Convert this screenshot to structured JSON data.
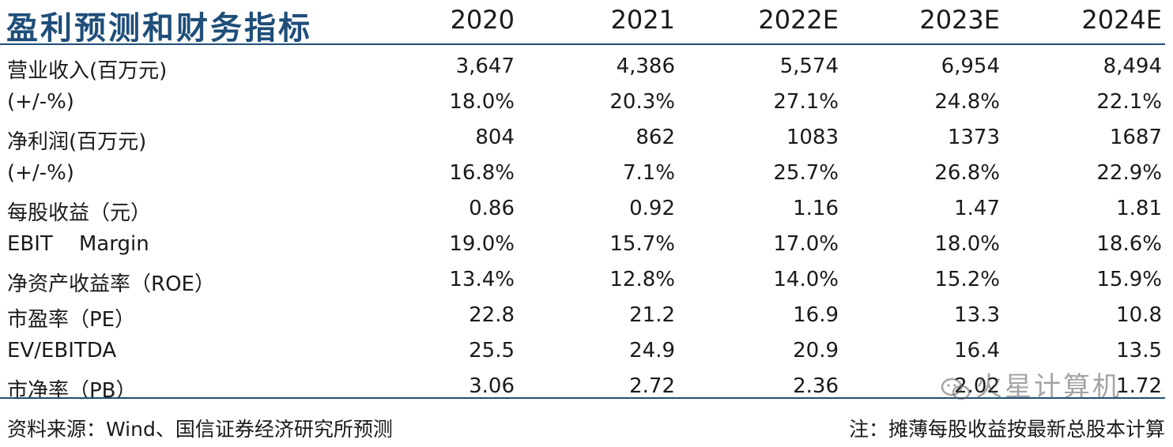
{
  "title": "盈利预测和财务指标",
  "years": [
    "2020",
    "2021",
    "2022E",
    "2023E",
    "2024E"
  ],
  "rows": [
    {
      "label": "营业收入(百万元)",
      "values": [
        "3,647",
        "4,386",
        "5,574",
        "6,954",
        "8,494"
      ]
    },
    {
      "label": "(+/-%)",
      "values": [
        "18.0%",
        "20.3%",
        "27.1%",
        "24.8%",
        "22.1%"
      ]
    },
    {
      "label": "净利润(百万元)",
      "values": [
        "804",
        "862",
        "1083",
        "1373",
        "1687"
      ]
    },
    {
      "label": "(+/-%)",
      "values": [
        "16.8%",
        "7.1%",
        "25.7%",
        "26.8%",
        "22.9%"
      ]
    },
    {
      "label": "每股收益（元）",
      "values": [
        "0.86",
        "0.92",
        "1.16",
        "1.47",
        "1.81"
      ]
    },
    {
      "label": "EBIT    Margin",
      "values": [
        "19.0%",
        "15.7%",
        "17.0%",
        "18.0%",
        "18.6%"
      ]
    },
    {
      "label": "净资产收益率（ROE）",
      "values": [
        "13.4%",
        "12.8%",
        "14.0%",
        "15.2%",
        "15.9%"
      ]
    },
    {
      "label": "市盈率（PE）",
      "values": [
        "22.8",
        "21.2",
        "16.9",
        "13.3",
        "10.8"
      ]
    },
    {
      "label": "EV/EBITDA",
      "values": [
        "25.5",
        "24.9",
        "20.9",
        "16.4",
        "13.5"
      ]
    },
    {
      "label": "市净率（PB）",
      "values": [
        "3.06",
        "2.72",
        "2.36",
        "2.02",
        "1.72"
      ]
    }
  ],
  "footer": {
    "source": "资料来源：Wind、国信证券经济研究所预测",
    "note": "注：摊薄每股收益按最新总股本计算"
  },
  "watermark": "火星计算机",
  "colors": {
    "title": "#1f4e79",
    "rule": "#1f4e79",
    "text": "#1a1a1a"
  }
}
